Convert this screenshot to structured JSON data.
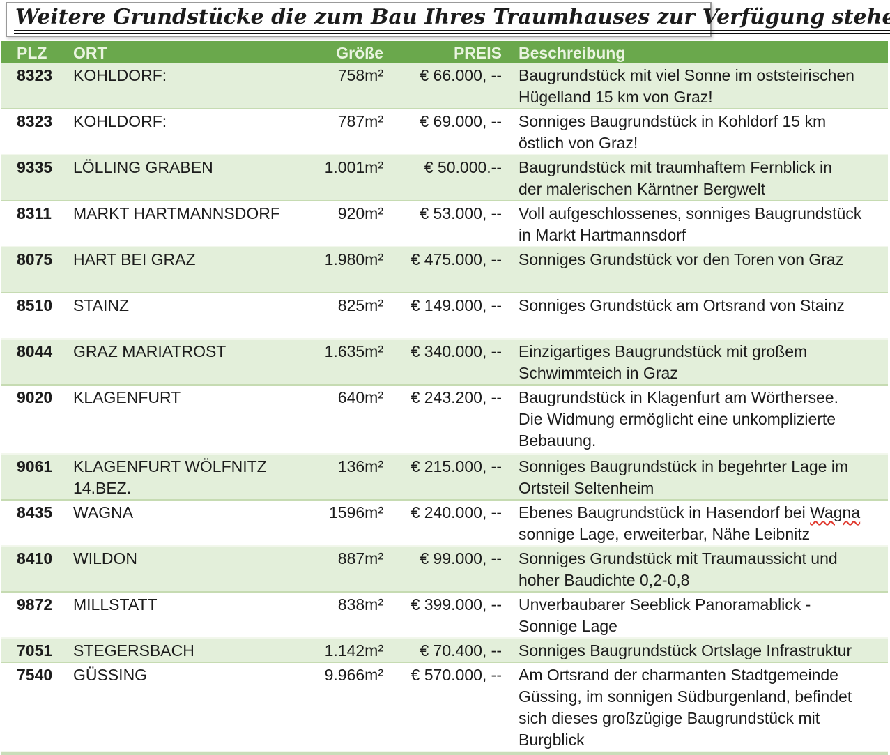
{
  "title": "Weitere Grundstücke die zum Bau Ihres Traumhauses zur Verfügung stehen",
  "colors": {
    "header_bg": "#6aa84c",
    "header_text": "#eaf4e0",
    "row_alt": "#e3efda",
    "row_border": "#c6dbb2",
    "table_bottom": "#c9ddb9",
    "text": "#1c1c1c",
    "misspell": "#e0392e"
  },
  "table": {
    "columns": [
      "PLZ",
      "ORT",
      "Größe",
      "PREIS",
      "Beschreibung"
    ],
    "rows": [
      {
        "plz": "8323",
        "ort": "KOHLDORF:",
        "groesse": "758m²",
        "preis": "€ 66.000, --",
        "beschreibung": "Baugrundstück mit viel Sonne im oststeirischen\nHügelland 15 km von Graz!",
        "lines": 2
      },
      {
        "plz": "8323",
        "ort": "KOHLDORF:",
        "groesse": "787m²",
        "preis": "€ 69.000, --",
        "beschreibung": "Sonniges Baugrundstück in Kohldorf 15 km\nöstlich von Graz!",
        "lines": 2
      },
      {
        "plz": "9335",
        "ort": "LÖLLING GRABEN",
        "groesse": "1.001m²",
        "preis": "€ 50.000.--",
        "beschreibung": "Baugrundstück mit traumhaftem Fernblick in\nder malerischen Kärntner Bergwelt",
        "lines": 2
      },
      {
        "plz": "8311",
        "ort": "MARKT HARTMANNSDORF",
        "groesse": "920m²",
        "preis": "€ 53.000, --",
        "beschreibung": "Voll aufgeschlossenes, sonniges Baugrundstück\nin Markt Hartmannsdorf",
        "lines": 2
      },
      {
        "plz": "8075",
        "ort": "HART BEI GRAZ",
        "groesse": "1.980m²",
        "preis": "€ 475.000, --",
        "beschreibung": "Sonniges Grundstück vor den Toren von Graz",
        "lines": 2
      },
      {
        "plz": "8510",
        "ort": "STAINZ",
        "groesse": "825m²",
        "preis": "€ 149.000, --",
        "beschreibung": "Sonniges Grundstück am Ortsrand von Stainz",
        "lines": 2
      },
      {
        "plz": "8044",
        "ort": "GRAZ MARIATROST",
        "groesse": "1.635m²",
        "preis": "€ 340.000, --",
        "beschreibung": "Einzigartiges Baugrundstück mit großem\nSchwimmteich in Graz",
        "lines": 2
      },
      {
        "plz": "9020",
        "ort": "KLAGENFURT",
        "groesse": "640m²",
        "preis": "€ 243.200, --",
        "beschreibung": "Baugrundstück in Klagenfurt am Wörthersee.\nDie Widmung ermöglicht eine unkomplizierte\nBebauung.",
        "lines": 3
      },
      {
        "plz": "9061",
        "ort": "KLAGENFURT WÖLFNITZ\n14.BEZ.",
        "groesse": "136m²",
        "preis": "€ 215.000, --",
        "beschreibung": "Sonniges Baugrundstück in begehrter Lage im\nOrtsteil Seltenheim",
        "lines": 2
      },
      {
        "plz": "8435",
        "ort": "WAGNA",
        "groesse": "1596m²",
        "preis": "€ 240.000, --",
        "beschreibung": "Ebenes Baugrundstück in Hasendorf bei Wagna\nsonnige Lage, erweiterbar, Nähe Leibnitz",
        "misspelled": "Wagna",
        "lines": 2
      },
      {
        "plz": "8410",
        "ort": "WILDON",
        "groesse": "887m²",
        "preis": "€ 99.000, --",
        "beschreibung": "Sonniges Grundstück mit Traumaussicht und\nhoher Baudichte 0,2-0,8",
        "lines": 2
      },
      {
        "plz": "9872",
        "ort": "MILLSTATT",
        "groesse": "838m²",
        "preis": "€ 399.000, --",
        "beschreibung": "Unverbaubarer Seeblick Panoramablick -\nSonnige Lage",
        "lines": 2
      },
      {
        "plz": "7051",
        "ort": "STEGERSBACH",
        "groesse": "1.142m²",
        "preis": "€ 70.400, --",
        "beschreibung": "Sonniges Baugrundstück Ortslage Infrastruktur",
        "lines": 1
      },
      {
        "plz": "7540",
        "ort": "GÜSSING",
        "groesse": "9.966m²",
        "preis": "€ 570.000, --",
        "beschreibung": "Am Ortsrand der charmanten Stadtgemeinde\nGüssing, im sonnigen Südburgenland, befindet\nsich dieses großzügige Baugrundstück mit\nBurgblick",
        "lines": 4
      }
    ]
  }
}
